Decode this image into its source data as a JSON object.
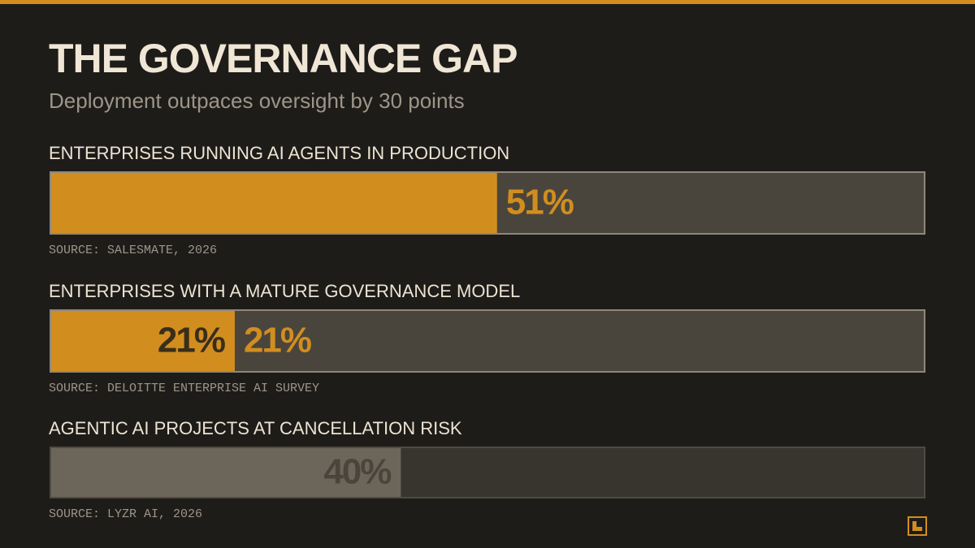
{
  "chart_data": {
    "type": "bar",
    "title": "THE GOVERNANCE GAP",
    "subtitle": "Deployment outpaces oversight by 30 points",
    "categories": [
      "ENTERPRISES RUNNING AI AGENTS IN PRODUCTION",
      "ENTERPRISES WITH A MATURE GOVERNANCE MODEL",
      "AGENTIC AI PROJECTS AT CANCELLATION RISK"
    ],
    "sources": [
      "SOURCE: SALESMATE, 2026",
      "SOURCE: DELOITTE ENTERPRISE AI SURVEY",
      "SOURCE: LYZR AI, 2026"
    ],
    "values": [
      51,
      21,
      40
    ],
    "value_labels": [
      "51%",
      "21%",
      "40%"
    ],
    "colors": [
      "#d18e1f",
      "#d18e1f",
      "#6c665a"
    ],
    "xlim": [
      0,
      100
    ]
  }
}
